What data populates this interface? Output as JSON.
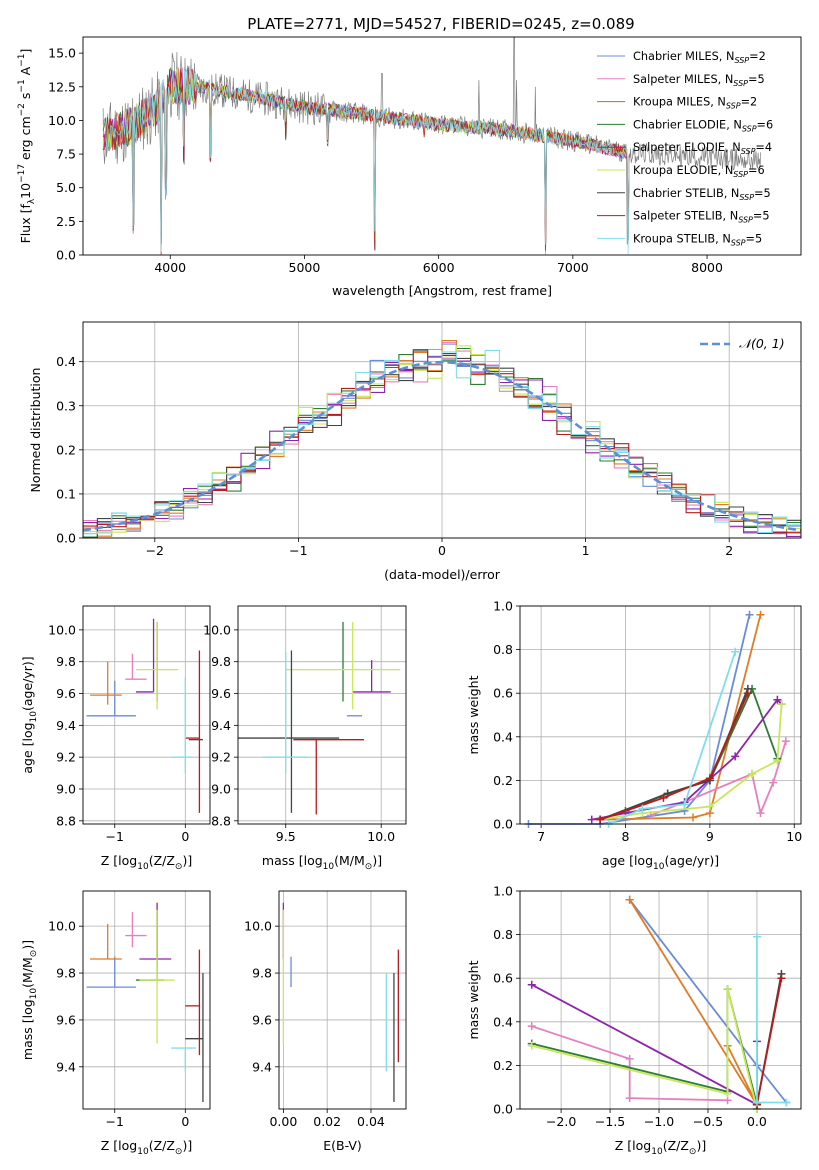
{
  "figure": {
    "title": "PLATE=2771, MJD=54527, FIBERID=0245, z=0.089"
  },
  "legend": {
    "entries": [
      {
        "label": "Chabrier MILES, N",
        "sub": "SSP",
        "tail": "=2",
        "color": "#6a8cd6"
      },
      {
        "label": "Salpeter MILES, N",
        "sub": "SSP",
        "tail": "=5",
        "color": "#e67fbf"
      },
      {
        "label": "Kroupa MILES, N",
        "sub": "SSP",
        "tail": "=2",
        "color": "#a87d16"
      },
      {
        "label": "Chabrier ELODIE, N",
        "sub": "SSP",
        "tail": "=6",
        "color": "#2e7d32"
      },
      {
        "label": "Salpeter ELODIE, N",
        "sub": "SSP",
        "tail": "=4",
        "color": "#8e24aa"
      },
      {
        "label": "Kroupa ELODIE, N",
        "sub": "SSP",
        "tail": "=6",
        "color": "#c6e85a"
      },
      {
        "label": "Chabrier STELIB, N",
        "sub": "SSP",
        "tail": "=5",
        "color": "#444444"
      },
      {
        "label": "Salpeter STELIB, N",
        "sub": "SSP",
        "tail": "=5",
        "color": "#b71c1c"
      },
      {
        "label": "Kroupa STELIB, N",
        "sub": "SSP",
        "tail": "=5",
        "color": "#80deea"
      }
    ],
    "normal_label": "𝒩(0, 1)"
  },
  "chart_data": [
    {
      "id": "spectrum",
      "type": "line",
      "title": "PLATE=2771, MJD=54527, FIBERID=0245, z=0.089",
      "xlabel": "wavelength [Angstrom, rest frame]",
      "ylabel_parts": [
        "Flux [f",
        "λ",
        "10",
        "−17",
        " erg cm",
        "−2",
        " s",
        "−1",
        " A",
        "−1",
        "]"
      ],
      "xlim": [
        3350,
        8700
      ],
      "ylim": [
        0,
        16.2
      ],
      "xticks": [
        4000,
        5000,
        6000,
        7000,
        8000
      ],
      "yticks": [
        0.0,
        2.5,
        5.0,
        7.5,
        10.0,
        12.5,
        15.0
      ],
      "continuum": {
        "x": [
          3500,
          3700,
          3900,
          4000,
          4200,
          4500,
          5000,
          5500,
          6000,
          6500,
          7000,
          7400
        ],
        "y": [
          8.8,
          9.5,
          11.0,
          12.6,
          12.5,
          12.0,
          11.0,
          10.4,
          9.7,
          9.3,
          8.5,
          7.6
        ]
      },
      "model_range": [
        3500,
        7420
      ],
      "data_range": [
        3500,
        8400
      ],
      "absorption_lines": [
        {
          "x": 3727,
          "y": 1.5
        },
        {
          "x": 3934,
          "y": 0.0
        },
        {
          "x": 3968,
          "y": 4.0
        },
        {
          "x": 4102,
          "y": 6.5
        },
        {
          "x": 4300,
          "y": 6.7
        },
        {
          "x": 4861,
          "y": 8.5
        },
        {
          "x": 5175,
          "y": 8.0
        },
        {
          "x": 5523,
          "y": 0.0
        },
        {
          "x": 5893,
          "y": 8.5
        },
        {
          "x": 6796,
          "y": 0.0
        },
        {
          "x": 7410,
          "y": 0.0
        }
      ],
      "emission_spikes": [
        {
          "x": 6563,
          "y": 16.2
        },
        {
          "x": 6580,
          "y": 13.0
        },
        {
          "x": 6720,
          "y": 12.5
        },
        {
          "x": 5577,
          "y": 13.5
        },
        {
          "x": 6300,
          "y": 13.0
        }
      ]
    },
    {
      "id": "residuals",
      "type": "line",
      "xlabel": "(data-model)/error",
      "ylabel": "Normed distribution",
      "xlim": [
        -2.5,
        2.5
      ],
      "ylim": [
        0,
        0.49
      ],
      "xticks": [
        -2,
        -1,
        0,
        1,
        2
      ],
      "xtick_labels": [
        "−2",
        "−1",
        "0",
        "1",
        "2"
      ],
      "yticks": [
        0.0,
        0.1,
        0.2,
        0.3,
        0.4
      ],
      "ytick_labels": [
        "0.0",
        "0.1",
        "0.2",
        "0.3",
        "0.4"
      ],
      "bin_width": 0.1,
      "series": [
        {
          "name": "Chabrier MILES",
          "color": "#6a8cd6",
          "seed": 1
        },
        {
          "name": "Salpeter MILES",
          "color": "#e67fbf",
          "seed": 2
        },
        {
          "name": "Kroupa MILES",
          "color": "#e07b27",
          "seed": 3
        },
        {
          "name": "Chabrier ELODIE",
          "color": "#2e7d32",
          "seed": 4
        },
        {
          "name": "Salpeter ELODIE",
          "color": "#8e24aa",
          "seed": 5
        },
        {
          "name": "Kroupa ELODIE",
          "color": "#c6e85a",
          "seed": 6
        },
        {
          "name": "Chabrier STELIB",
          "color": "#444444",
          "seed": 7
        },
        {
          "name": "Salpeter STELIB",
          "color": "#b71c1c",
          "seed": 8
        },
        {
          "name": "Kroupa STELIB",
          "color": "#80deea",
          "seed": 9
        }
      ],
      "normal": {
        "mean": 0,
        "sigma": 1,
        "color": "#5b8fd6"
      }
    },
    {
      "id": "age_vs_Z",
      "type": "scatter",
      "xlabel_parts": [
        "Z [log",
        "10",
        "(Z/Z",
        "⊙",
        ")]"
      ],
      "ylabel_parts": [
        "age  [log",
        "10",
        "(age/yr)]"
      ],
      "xlim": [
        -1.45,
        0.35
      ],
      "ylim": [
        8.78,
        10.15
      ],
      "xticks": [
        -1,
        0
      ],
      "xtick_labels": [
        "−1",
        "0"
      ],
      "yticks": [
        8.8,
        9.0,
        9.2,
        9.4,
        9.6,
        9.8,
        10.0
      ],
      "ytick_labels": [
        "8.8",
        "9.0",
        "9.2",
        "9.4",
        "9.6",
        "9.8",
        "10.0"
      ],
      "points": [
        {
          "color": "#6a8cd6",
          "x": -1.0,
          "xl": 0.4,
          "xh": 0.3,
          "y": 9.46,
          "yl": 0.0,
          "yh": 0.22
        },
        {
          "color": "#e07b27",
          "x": -1.1,
          "xl": 0.25,
          "xh": 0.2,
          "y": 9.59,
          "yl": 0.06,
          "yh": 0.21
        },
        {
          "color": "#e67fbf",
          "x": -0.75,
          "xl": 0.1,
          "xh": 0.2,
          "y": 9.69,
          "yl": 0.0,
          "yh": 0.16
        },
        {
          "color": "#2e7d32",
          "x": -0.4,
          "xl": 0.0,
          "xh": 0.0,
          "y": 9.75,
          "yl": 0.2,
          "yh": 0.3
        },
        {
          "color": "#8e24aa",
          "x": -0.45,
          "xl": 0.25,
          "xh": 0.0,
          "y": 9.61,
          "yl": 0.0,
          "yh": 0.46
        },
        {
          "color": "#c6e85a",
          "x": -0.4,
          "xl": 0.3,
          "xh": 0.3,
          "y": 9.75,
          "yl": 0.25,
          "yh": 0.3
        },
        {
          "color": "#444444",
          "x": 0.25,
          "xl": 0.2,
          "xh": 0.0,
          "y": 9.31,
          "yl": 0.0,
          "yh": 0.0
        },
        {
          "color": "#b71c1c",
          "x": 0.2,
          "xl": 0.2,
          "xh": 0.0,
          "y": 9.32,
          "yl": 0.47,
          "yh": 0.55
        },
        {
          "color": "#80deea",
          "x": 0.0,
          "xl": 0.2,
          "xh": 0.1,
          "y": 9.2,
          "yl": 0.1,
          "yh": 0.5
        }
      ]
    },
    {
      "id": "age_vs_mass",
      "type": "scatter",
      "xlabel_parts": [
        "mass [log",
        "10",
        "(M/M",
        "⊙",
        ")]"
      ],
      "xlim": [
        9.25,
        10.13
      ],
      "ylim": [
        8.78,
        10.15
      ],
      "xticks": [
        9.5,
        10.0
      ],
      "xtick_labels": [
        "9.5",
        "10.0"
      ],
      "yticks": [
        8.8,
        9.0,
        9.2,
        9.4,
        9.6,
        9.8,
        10.0
      ],
      "ytick_labels": [
        "8.8",
        "9.0",
        "9.2",
        "9.4",
        "9.6",
        "9.8",
        "10.0"
      ],
      "points": [
        {
          "color": "#6a8cd6",
          "x": 9.9,
          "xl": 0.08,
          "xh": 0.0,
          "y": 9.46,
          "yl": 0.0,
          "yh": 0.0
        },
        {
          "color": "#2e7d32",
          "x": 9.8,
          "xl": 0.0,
          "xh": 0.0,
          "y": 9.75,
          "yl": 0.2,
          "yh": 0.3
        },
        {
          "color": "#8e24aa",
          "x": 9.95,
          "xl": 0.1,
          "xh": 0.1,
          "y": 9.61,
          "yl": 0.0,
          "yh": 0.2
        },
        {
          "color": "#c6e85a",
          "x": 9.85,
          "xl": 0.35,
          "xh": 0.25,
          "y": 9.75,
          "yl": 0.25,
          "yh": 0.3
        },
        {
          "color": "#444444",
          "x": 9.53,
          "xl": 0.3,
          "xh": 0.25,
          "y": 9.32,
          "yl": 0.47,
          "yh": 0.55
        },
        {
          "color": "#b71c1c",
          "x": 9.66,
          "xl": 0.12,
          "xh": 0.25,
          "y": 9.31,
          "yl": 0.47,
          "yh": 0.0
        },
        {
          "color": "#80deea",
          "x": 9.5,
          "xl": 0.12,
          "xh": 0.12,
          "y": 9.2,
          "yl": 0.1,
          "yh": 0.66
        }
      ]
    },
    {
      "id": "massweight_vs_age",
      "type": "line",
      "xlabel_parts": [
        "age  [log",
        "10",
        "(age/yr)]"
      ],
      "ylabel": "mass weight",
      "xlim": [
        6.75,
        10.08
      ],
      "ylim": [
        0,
        1.0
      ],
      "xticks": [
        7,
        8,
        9,
        10
      ],
      "xtick_labels": [
        "7",
        "8",
        "9",
        "10"
      ],
      "yticks": [
        0.0,
        0.2,
        0.4,
        0.6,
        0.8,
        1.0
      ],
      "ytick_labels": [
        "0.0",
        "0.2",
        "0.4",
        "0.6",
        "0.8",
        "1.0"
      ],
      "series": [
        {
          "color": "#6a8cd6",
          "x": [
            6.85,
            7.7,
            8.7,
            9.0,
            9.47
          ],
          "y": [
            0.0,
            0.0,
            0.06,
            0.2,
            0.96
          ]
        },
        {
          "color": "#e07b27",
          "x": [
            7.7,
            8.8,
            9.0,
            9.6
          ],
          "y": [
            0.02,
            0.03,
            0.05,
            0.96
          ]
        },
        {
          "color": "#e67fbf",
          "x": [
            8.3,
            8.7,
            9.5,
            9.6,
            9.75,
            9.9
          ],
          "y": [
            0.04,
            0.1,
            0.23,
            0.05,
            0.19,
            0.38
          ]
        },
        {
          "color": "#2e7d32",
          "x": [
            7.7,
            8.0,
            8.5,
            9.0,
            9.5,
            9.8
          ],
          "y": [
            0.02,
            0.06,
            0.14,
            0.2,
            0.62,
            0.3
          ]
        },
        {
          "color": "#8e24aa",
          "x": [
            7.6,
            8.0,
            8.7,
            9.3,
            9.8,
            9.85
          ],
          "y": [
            0.02,
            0.05,
            0.1,
            0.31,
            0.57,
            0.55
          ]
        },
        {
          "color": "#c6e85a",
          "x": [
            7.7,
            8.2,
            9.0,
            9.5,
            9.8,
            9.85
          ],
          "y": [
            0.02,
            0.05,
            0.08,
            0.23,
            0.29,
            0.55
          ]
        },
        {
          "color": "#444444",
          "x": [
            7.7,
            8.5,
            9.0,
            9.45
          ],
          "y": [
            0.02,
            0.14,
            0.2,
            0.62
          ]
        },
        {
          "color": "#b71c1c",
          "x": [
            7.7,
            8.45,
            9.0,
            9.45
          ],
          "y": [
            0.02,
            0.12,
            0.21,
            0.6
          ]
        },
        {
          "color": "#80deea",
          "x": [
            7.8,
            8.2,
            8.7,
            9.3
          ],
          "y": [
            0.0,
            0.07,
            0.09,
            0.79
          ]
        }
      ]
    },
    {
      "id": "mass_vs_Z",
      "type": "scatter",
      "xlabel_parts": [
        "Z [log",
        "10",
        "(Z/Z",
        "⊙",
        ")]"
      ],
      "ylabel_parts": [
        "mass [log",
        "10",
        "(M/M",
        "⊙",
        ")]"
      ],
      "xlim": [
        -1.45,
        0.35
      ],
      "ylim": [
        9.22,
        10.15
      ],
      "xticks": [
        -1,
        0
      ],
      "xtick_labels": [
        "−1",
        "0"
      ],
      "yticks": [
        9.4,
        9.6,
        9.8,
        10.0
      ],
      "ytick_labels": [
        "9.4",
        "9.6",
        "9.8",
        "10.0"
      ],
      "points": [
        {
          "color": "#6a8cd6",
          "x": -1.0,
          "xl": 0.4,
          "xh": 0.3,
          "y": 9.74,
          "yl": 0.0,
          "yh": 0.13
        },
        {
          "color": "#e07b27",
          "x": -1.1,
          "xl": 0.25,
          "xh": 0.2,
          "y": 9.86,
          "yl": 0.0,
          "yh": 0.15
        },
        {
          "color": "#e67fbf",
          "x": -0.75,
          "xl": 0.1,
          "xh": 0.2,
          "y": 9.96,
          "yl": 0.05,
          "yh": 0.1
        },
        {
          "color": "#2e7d32",
          "x": -0.4,
          "xl": 0.3,
          "xh": 0.1,
          "y": 9.77,
          "yl": 0.0,
          "yh": 0.3
        },
        {
          "color": "#8e24aa",
          "x": -0.4,
          "xl": 0.25,
          "xh": 0.2,
          "y": 9.86,
          "yl": 0.0,
          "yh": 0.24
        },
        {
          "color": "#c6e85a",
          "x": -0.4,
          "xl": 0.25,
          "xh": 0.25,
          "y": 9.77,
          "yl": 0.27,
          "yh": 0.3
        },
        {
          "color": "#444444",
          "x": 0.25,
          "xl": 0.25,
          "xh": 0.0,
          "y": 9.52,
          "yl": 0.27,
          "yh": 0.28
        },
        {
          "color": "#b71c1c",
          "x": 0.2,
          "xl": 0.2,
          "xh": 0.0,
          "y": 9.66,
          "yl": 0.21,
          "yh": 0.24
        },
        {
          "color": "#80deea",
          "x": 0.0,
          "xl": 0.2,
          "xh": 0.15,
          "y": 9.48,
          "yl": 0.1,
          "yh": 0.0
        }
      ]
    },
    {
      "id": "mass_vs_EBV",
      "type": "scatter",
      "xlabel": "E(B-V)",
      "xlim": [
        -0.002,
        0.056
      ],
      "ylim": [
        9.22,
        10.15
      ],
      "xticks": [
        0.0,
        0.02,
        0.04
      ],
      "xtick_labels": [
        "0.00",
        "0.02",
        "0.04"
      ],
      "yticks": [
        9.4,
        9.6,
        9.8,
        10.0
      ],
      "ytick_labels": [
        "9.4",
        "9.6",
        "9.8",
        "10.0"
      ],
      "points": [
        {
          "color": "#8e24aa",
          "x": 0.0,
          "xl": 0.0,
          "xh": 0.0,
          "y": 9.86,
          "yl": 0.0,
          "yh": 0.24
        },
        {
          "color": "#c6e85a",
          "x": 0.0,
          "xl": 0.0,
          "xh": 0.0,
          "y": 9.77,
          "yl": 0.27,
          "yh": 0.3
        },
        {
          "color": "#6a8cd6",
          "x": 0.0035,
          "xl": 0.0,
          "xh": 0.0,
          "y": 9.8,
          "yl": 0.06,
          "yh": 0.07
        },
        {
          "color": "#80deea",
          "x": 0.047,
          "xl": 0.0,
          "xh": 0.0,
          "y": 9.68,
          "yl": 0.3,
          "yh": 0.12
        },
        {
          "color": "#444444",
          "x": 0.0505,
          "xl": 0.0,
          "xh": 0.0,
          "y": 9.52,
          "yl": 0.27,
          "yh": 0.28
        },
        {
          "color": "#b71c1c",
          "x": 0.0525,
          "xl": 0.0,
          "xh": 0.0,
          "y": 9.66,
          "yl": 0.24,
          "yh": 0.24
        }
      ]
    },
    {
      "id": "massweight_vs_Z",
      "type": "line",
      "xlabel_parts": [
        "Z [log",
        "10",
        "(Z/Z",
        "⊙",
        ")]"
      ],
      "ylabel": "mass weight",
      "xlim": [
        -2.42,
        0.45
      ],
      "ylim": [
        0,
        1.0
      ],
      "xticks": [
        -2.0,
        -1.5,
        -1.0,
        -0.5,
        0.0
      ],
      "xtick_labels": [
        "−2.0",
        "−1.5",
        "−1.0",
        "−0.5",
        "0.0"
      ],
      "yticks": [
        0.0,
        0.2,
        0.4,
        0.6,
        0.8,
        1.0
      ],
      "ytick_labels": [
        "0.0",
        "0.2",
        "0.4",
        "0.6",
        "0.8",
        "1.0"
      ],
      "series": [
        {
          "color": "#6a8cd6",
          "x": [
            -1.3,
            0.0,
            0.3
          ],
          "y": [
            0.96,
            0.2,
            0.03
          ]
        },
        {
          "color": "#e07b27",
          "x": [
            -1.3,
            0.0,
            -0.3
          ],
          "y": [
            0.96,
            0.02,
            0.29
          ]
        },
        {
          "color": "#e67fbf",
          "x": [
            -2.3,
            -1.3,
            -1.3,
            -0.3
          ],
          "y": [
            0.38,
            0.23,
            0.05,
            0.04
          ]
        },
        {
          "color": "#2e7d32",
          "x": [
            -2.3,
            -0.3,
            -0.3,
            0.0,
            0.0
          ],
          "y": [
            0.3,
            0.08,
            0.55,
            0.02,
            0.0
          ]
        },
        {
          "color": "#8e24aa",
          "x": [
            -2.3,
            0.0,
            0.0
          ],
          "y": [
            0.57,
            0.02,
            0.31
          ]
        },
        {
          "color": "#c6e85a",
          "x": [
            -2.3,
            -0.3,
            -0.3,
            0.0
          ],
          "y": [
            0.29,
            0.07,
            0.55,
            0.0
          ]
        },
        {
          "color": "#444444",
          "x": [
            0.0,
            0.25
          ],
          "y": [
            0.02,
            0.62
          ]
        },
        {
          "color": "#b71c1c",
          "x": [
            0.0,
            0.25
          ],
          "y": [
            0.02,
            0.6
          ]
        },
        {
          "color": "#80deea",
          "x": [
            0.0,
            0.0,
            0.3
          ],
          "y": [
            0.79,
            0.03,
            0.03
          ]
        }
      ]
    }
  ]
}
